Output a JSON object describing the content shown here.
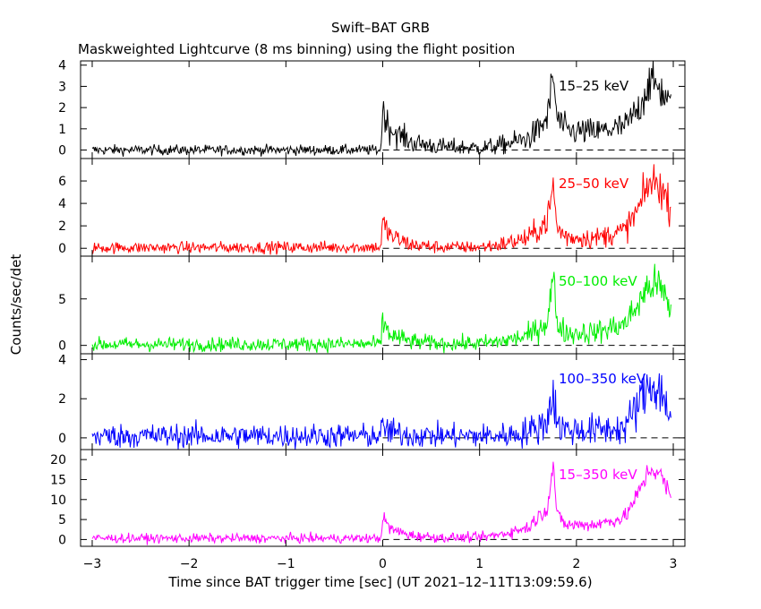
{
  "title": "Swift–BAT GRB",
  "subtitle": "Maskweighted Lightcurve (8 ms binning) using the flight position",
  "chart_data": {
    "type": "line",
    "xlabel": "Time since BAT trigger time [sec] (UT 2021–12–11T13:09:59.6)",
    "ylabel": "Counts/sec/det",
    "xlim": [
      -3.12,
      3.12
    ],
    "x_ticks": [
      "−3",
      "−2",
      "−1",
      "0",
      "1",
      "2",
      "3"
    ],
    "bin_width": 0.008,
    "x_range": [
      -3.0,
      2.98
    ],
    "baseline": "dashed line at 0",
    "panels": [
      {
        "band": "15–25 keV",
        "color": "#000000",
        "ylim": [
          -0.4,
          4.2
        ],
        "y_ticks": [
          "0",
          "1",
          "2",
          "3",
          "4"
        ],
        "envelope_x": [
          -3.0,
          -0.02,
          0.0,
          0.05,
          0.1,
          0.3,
          0.6,
          1.0,
          1.2,
          1.5,
          1.6,
          1.7,
          1.76,
          1.8,
          1.9,
          2.2,
          2.5,
          2.65,
          2.75,
          2.85,
          2.95,
          2.98
        ],
        "envelope_y": [
          0.0,
          0.0,
          2.0,
          1.2,
          0.9,
          0.35,
          0.15,
          0.1,
          0.2,
          0.55,
          0.9,
          1.5,
          3.5,
          1.5,
          0.9,
          0.85,
          1.1,
          2.0,
          3.2,
          3.0,
          2.2,
          2.0
        ],
        "noise": [
          0.12,
          0.22
        ]
      },
      {
        "band": "25–50 keV",
        "color": "#ff0000",
        "ylim": [
          -0.7,
          8.0
        ],
        "y_ticks": [
          "0",
          "2",
          "4",
          "6"
        ],
        "envelope_x": [
          -3.0,
          -0.02,
          0.0,
          0.05,
          0.1,
          0.3,
          0.6,
          1.0,
          1.2,
          1.5,
          1.6,
          1.7,
          1.76,
          1.8,
          1.9,
          2.2,
          2.5,
          2.65,
          2.75,
          2.85,
          2.95,
          2.98
        ],
        "envelope_y": [
          0.05,
          0.1,
          2.3,
          1.5,
          1.0,
          0.3,
          0.1,
          0.1,
          0.3,
          0.9,
          1.6,
          2.5,
          5.5,
          1.8,
          1.0,
          0.9,
          1.6,
          3.6,
          5.8,
          5.8,
          4.0,
          3.5
        ],
        "noise": [
          0.18,
          0.3
        ]
      },
      {
        "band": "50–100 keV",
        "color": "#00ee00",
        "ylim": [
          -0.9,
          9.6
        ],
        "y_ticks": [
          "0",
          "5"
        ],
        "envelope_x": [
          -3.0,
          -0.02,
          0.0,
          0.05,
          0.1,
          0.3,
          0.6,
          1.0,
          1.2,
          1.5,
          1.6,
          1.7,
          1.76,
          1.8,
          1.9,
          2.2,
          2.5,
          2.65,
          2.75,
          2.85,
          2.95,
          2.98
        ],
        "envelope_y": [
          0.1,
          0.15,
          2.6,
          1.6,
          1.0,
          0.4,
          0.2,
          0.2,
          0.4,
          1.0,
          1.8,
          2.6,
          7.5,
          2.4,
          1.3,
          1.4,
          2.3,
          4.6,
          6.5,
          6.5,
          4.5,
          3.5
        ],
        "noise": [
          0.28,
          0.3
        ]
      },
      {
        "band": "100–350 keV",
        "color": "#0000ff",
        "ylim": [
          -0.6,
          4.3
        ],
        "y_ticks": [
          "0",
          "2",
          "4"
        ],
        "envelope_x": [
          -3.0,
          -0.02,
          0.0,
          0.05,
          0.1,
          0.3,
          0.6,
          1.0,
          1.2,
          1.4,
          1.6,
          1.7,
          1.76,
          1.8,
          1.9,
          2.2,
          2.5,
          2.65,
          2.75,
          2.85,
          2.95,
          2.98
        ],
        "envelope_y": [
          0.1,
          0.1,
          0.6,
          0.4,
          0.25,
          0.15,
          0.1,
          0.1,
          0.1,
          0.2,
          0.5,
          0.9,
          2.5,
          0.7,
          0.4,
          0.4,
          0.5,
          1.8,
          2.7,
          2.6,
          1.4,
          1.2
        ],
        "noise": [
          0.22,
          0.3
        ]
      },
      {
        "band": "15–350 keV",
        "color": "#ff00ff",
        "ylim": [
          -1.7,
          22.5
        ],
        "y_ticks": [
          "0",
          "5",
          "10",
          "15",
          "20"
        ],
        "envelope_x": [
          -3.0,
          -0.02,
          0.0,
          0.05,
          0.1,
          0.3,
          0.6,
          1.0,
          1.2,
          1.5,
          1.6,
          1.7,
          1.76,
          1.8,
          1.9,
          2.2,
          2.5,
          2.65,
          2.75,
          2.85,
          2.95,
          2.98
        ],
        "envelope_y": [
          0.3,
          0.3,
          5.5,
          3.5,
          2.4,
          1.0,
          0.5,
          0.5,
          1.2,
          3.0,
          5.5,
          8.0,
          19.0,
          6.0,
          3.6,
          3.8,
          5.5,
          12.0,
          17.5,
          17.0,
          12.0,
          10.0
        ],
        "noise": [
          0.45,
          0.22
        ]
      }
    ]
  }
}
